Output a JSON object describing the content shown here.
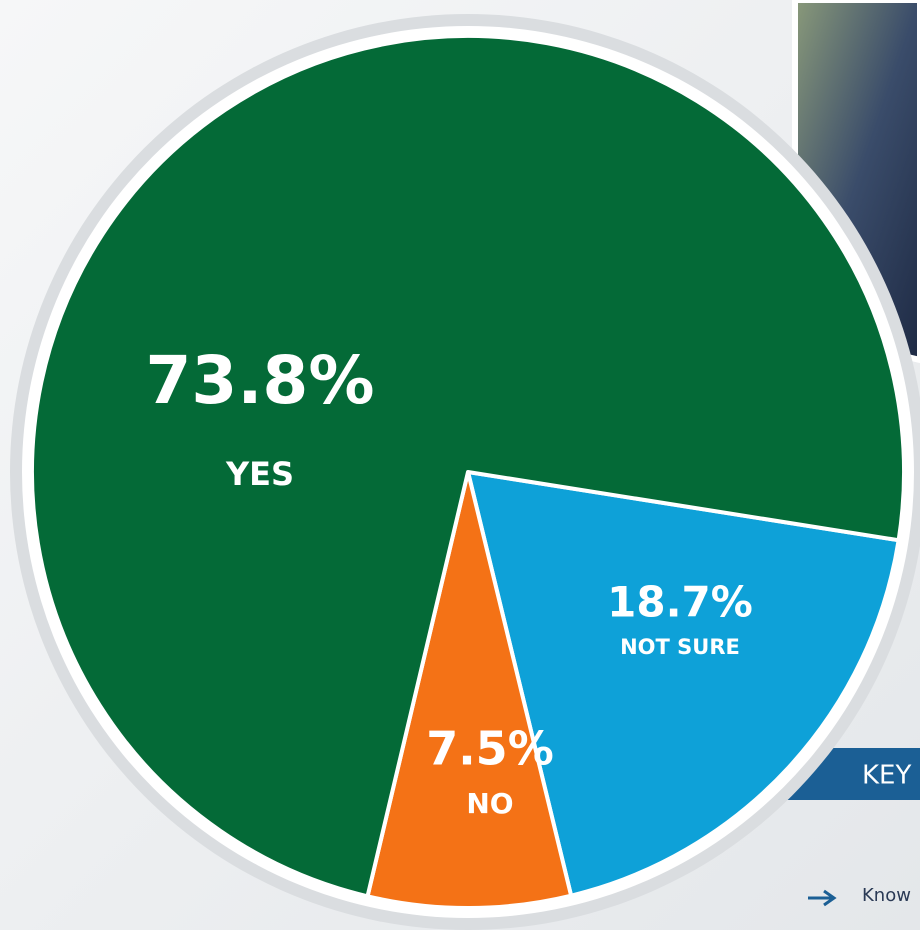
{
  "chart_data": {
    "type": "pie",
    "categories": [
      "NOT SURE",
      "NO",
      "YES"
    ],
    "values": [
      18.7,
      7.5,
      73.8
    ],
    "value_labels": [
      "18.7%",
      "7.5%",
      "73.8%"
    ],
    "colors": [
      "#0ea1d8",
      "#f47216",
      "#046a37"
    ]
  },
  "sidebar": {
    "heading": "KEY",
    "items": [
      "Know"
    ]
  }
}
